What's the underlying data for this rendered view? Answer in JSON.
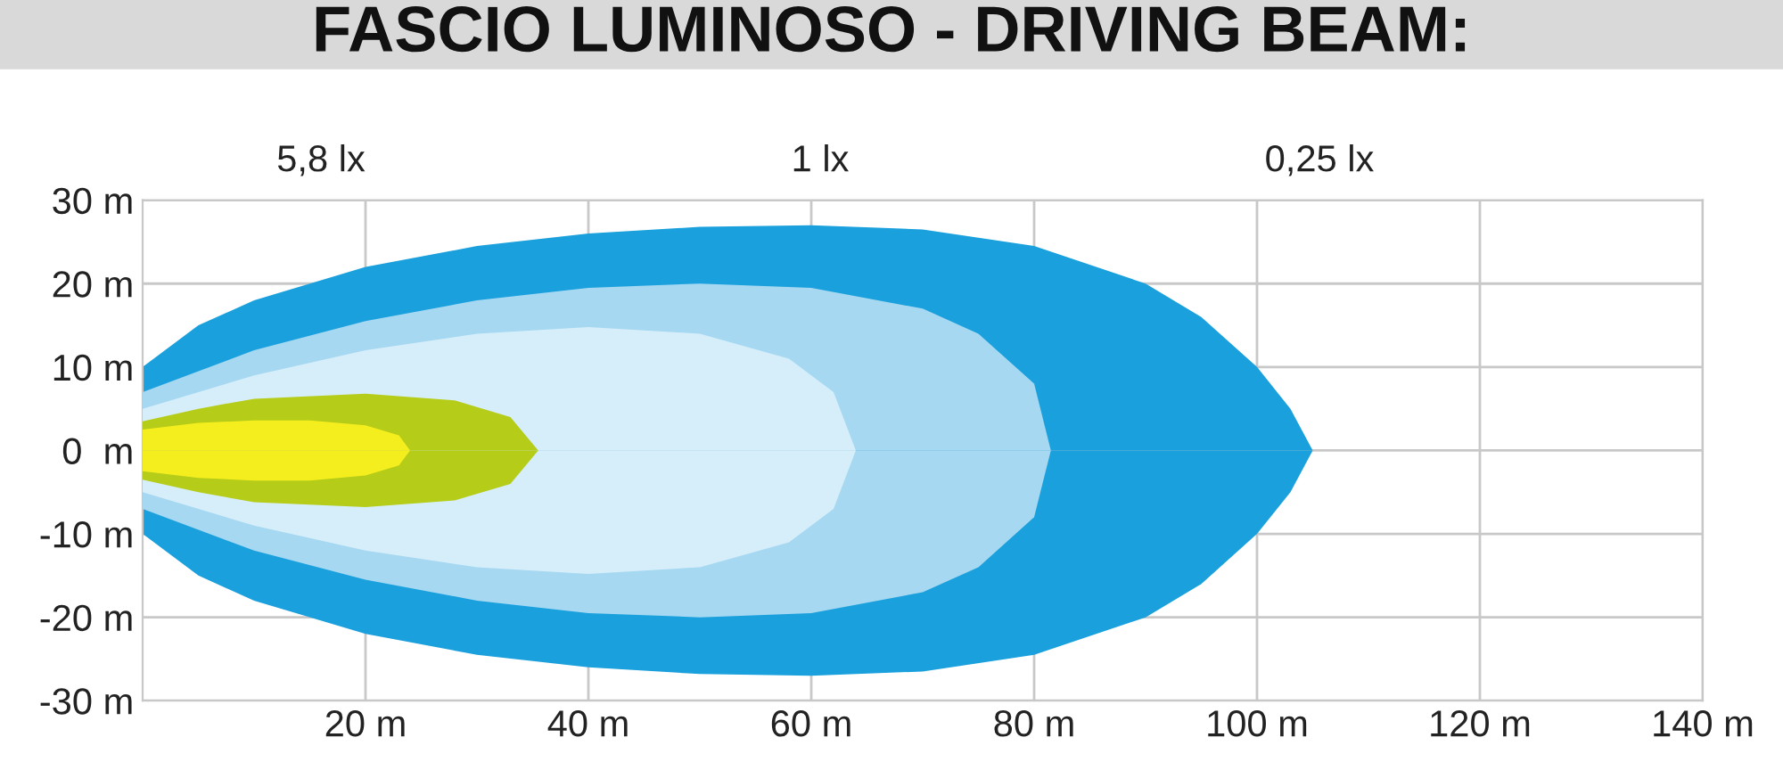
{
  "chart_data": {
    "type": "area",
    "title": "FASCIO LUMINOSO - DRIVING BEAM:",
    "annotations": [
      "5,8 lx",
      "1 lx",
      "0,25 lx"
    ],
    "xlim": [
      0,
      140
    ],
    "ylim": [
      -30,
      30
    ],
    "xticks": [
      {
        "value": 20,
        "label": "20 m"
      },
      {
        "value": 40,
        "label": "40 m"
      },
      {
        "value": 60,
        "label": "60 m"
      },
      {
        "value": 80,
        "label": "80 m"
      },
      {
        "value": 100,
        "label": "100 m"
      },
      {
        "value": 120,
        "label": "120 m"
      },
      {
        "value": 140,
        "label": "140 m"
      }
    ],
    "yticks": [
      {
        "value": 30,
        "label": "30 m"
      },
      {
        "value": 20,
        "label": "20 m"
      },
      {
        "value": 10,
        "label": "10 m"
      },
      {
        "value": 0,
        "label": "0  m"
      },
      {
        "value": -10,
        "label": "-10 m"
      },
      {
        "value": -20,
        "label": "-20 m"
      },
      {
        "value": -30,
        "label": "-30 m"
      }
    ],
    "grid": true,
    "series": [
      {
        "color": "#1aa0dc",
        "x": [
          0,
          5,
          10,
          20,
          30,
          40,
          50,
          60,
          70,
          80,
          90,
          95,
          100,
          103,
          105
        ],
        "values": [
          10,
          15,
          18,
          22,
          24.5,
          26,
          26.8,
          27,
          26.5,
          24.5,
          20,
          16,
          10,
          5,
          0
        ]
      },
      {
        "color": "#1aa0dc",
        "x": [
          0,
          5,
          10,
          20,
          30,
          40,
          50,
          60,
          70,
          80,
          90,
          95,
          100,
          103,
          105
        ],
        "values": [
          -10,
          -15,
          -18,
          -22,
          -24.5,
          -26,
          -26.8,
          -27,
          -26.5,
          -24.5,
          -20,
          -16,
          -10,
          -5,
          0
        ]
      },
      {
        "color": "#a6d8f2",
        "x": [
          0,
          10,
          20,
          30,
          40,
          50,
          60,
          70,
          75,
          80,
          81.5
        ],
        "values": [
          7,
          12,
          15.5,
          18,
          19.5,
          20,
          19.5,
          17,
          14,
          8,
          0
        ]
      },
      {
        "color": "#a6d8f2",
        "x": [
          0,
          10,
          20,
          30,
          40,
          50,
          60,
          70,
          75,
          80,
          81.5
        ],
        "values": [
          -7,
          -12,
          -15.5,
          -18,
          -19.5,
          -20,
          -19.5,
          -17,
          -14,
          -8,
          0
        ]
      },
      {
        "color": "#d6eef9",
        "x": [
          0,
          10,
          20,
          30,
          40,
          50,
          58,
          62,
          64
        ],
        "values": [
          5,
          9,
          12,
          14,
          14.8,
          14,
          11,
          7,
          0
        ]
      },
      {
        "color": "#d6eef9",
        "x": [
          0,
          10,
          20,
          30,
          40,
          50,
          58,
          62,
          64
        ],
        "values": [
          -5,
          -9,
          -12,
          -14,
          -14.8,
          -14,
          -11,
          -7,
          0
        ]
      },
      {
        "color": "#b5cc18",
        "x": [
          0,
          5,
          10,
          20,
          28,
          33,
          35.5
        ],
        "values": [
          3.5,
          5,
          6.2,
          6.8,
          6,
          4,
          0
        ]
      },
      {
        "color": "#b5cc18",
        "x": [
          0,
          5,
          10,
          20,
          28,
          33,
          35.5
        ],
        "values": [
          -3.5,
          -5,
          -6.2,
          -6.8,
          -6,
          -4,
          0
        ]
      },
      {
        "color": "#f5ee1e",
        "x": [
          0,
          5,
          10,
          15,
          20,
          23,
          24
        ],
        "values": [
          2.5,
          3.3,
          3.6,
          3.6,
          3,
          1.8,
          0
        ]
      },
      {
        "color": "#f5ee1e",
        "x": [
          0,
          5,
          10,
          15,
          20,
          23,
          24
        ],
        "values": [
          -2.5,
          -3.3,
          -3.6,
          -3.6,
          -3,
          -1.8,
          0
        ]
      }
    ]
  }
}
